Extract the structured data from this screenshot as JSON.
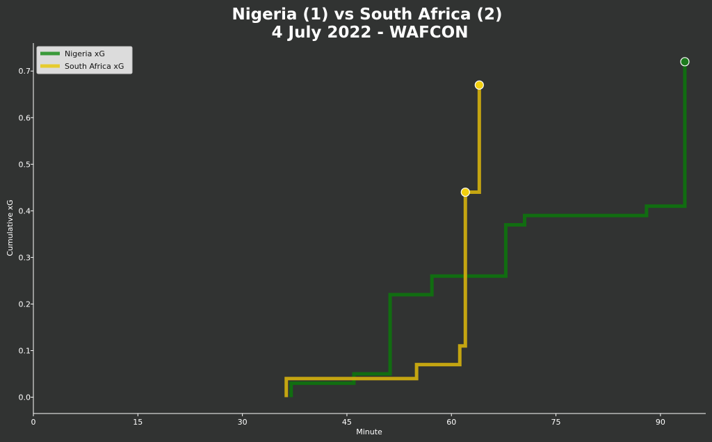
{
  "chart_data": {
    "type": "line",
    "title_line1": "Nigeria (1) vs South Africa (2)",
    "title_line2": "4 July 2022 - WAFCON",
    "xlabel": "Minute",
    "ylabel": "Cumulative xG",
    "xlim": [
      0,
      96.5
    ],
    "ylim": [
      -0.035,
      0.76
    ],
    "xticks": [
      0,
      15,
      30,
      45,
      60,
      75,
      90
    ],
    "yticks": [
      0.0,
      0.1,
      0.2,
      0.3,
      0.4,
      0.5,
      0.6,
      0.7
    ],
    "ytick_labels": [
      "0.0",
      "0.1",
      "0.2",
      "0.3",
      "0.4",
      "0.5",
      "0.6",
      "0.7"
    ],
    "grid": false,
    "legend_position": "top-left",
    "series": [
      {
        "name": "Nigeria xG",
        "color": "#116d11",
        "legend_color": "#3a9a3a",
        "x": [
          37,
          46,
          51.2,
          57.2,
          67.8,
          70.5,
          88,
          93.5
        ],
        "y": [
          0.03,
          0.05,
          0.22,
          0.26,
          0.37,
          0.39,
          0.41,
          0.72
        ],
        "goals": [
          {
            "x": 93.5,
            "y": 0.72
          }
        ]
      },
      {
        "name": "South Africa xG",
        "color": "#c4a511",
        "legend_color": "#e6cb2e",
        "x": [
          36.3,
          55,
          61.2,
          62,
          64
        ],
        "y": [
          0.04,
          0.07,
          0.11,
          0.44,
          0.67
        ],
        "goals": [
          {
            "x": 62,
            "y": 0.44
          },
          {
            "x": 64,
            "y": 0.67
          }
        ]
      }
    ]
  }
}
